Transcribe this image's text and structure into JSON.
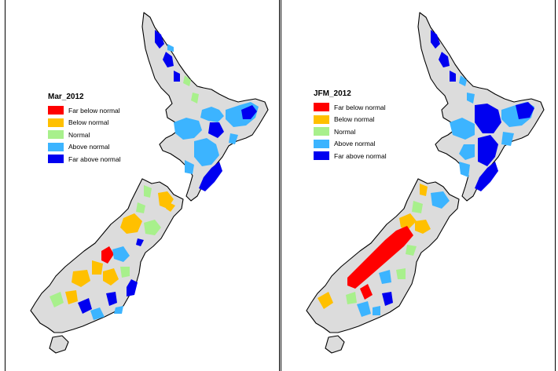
{
  "maps": [
    {
      "title": "Mar_2012",
      "legend": [
        {
          "label": "Far below normal",
          "color": "#ff0000"
        },
        {
          "label": "Below normal",
          "color": "#ffc000"
        },
        {
          "label": "Normal",
          "color": "#a8f08c"
        },
        {
          "label": "Above normal",
          "color": "#3cb4ff"
        },
        {
          "label": "Far above normal",
          "color": "#0000f0"
        }
      ]
    },
    {
      "title": "JFM_2012",
      "legend": [
        {
          "label": "Far below normal",
          "color": "#ff0000"
        },
        {
          "label": "Below normal",
          "color": "#ffc000"
        },
        {
          "label": "Normal",
          "color": "#a8f08c"
        },
        {
          "label": "Above normal",
          "color": "#3cb4ff"
        },
        {
          "label": "Far above normal",
          "color": "#0000f0"
        }
      ]
    }
  ],
  "land_color": "#dcdcdc"
}
